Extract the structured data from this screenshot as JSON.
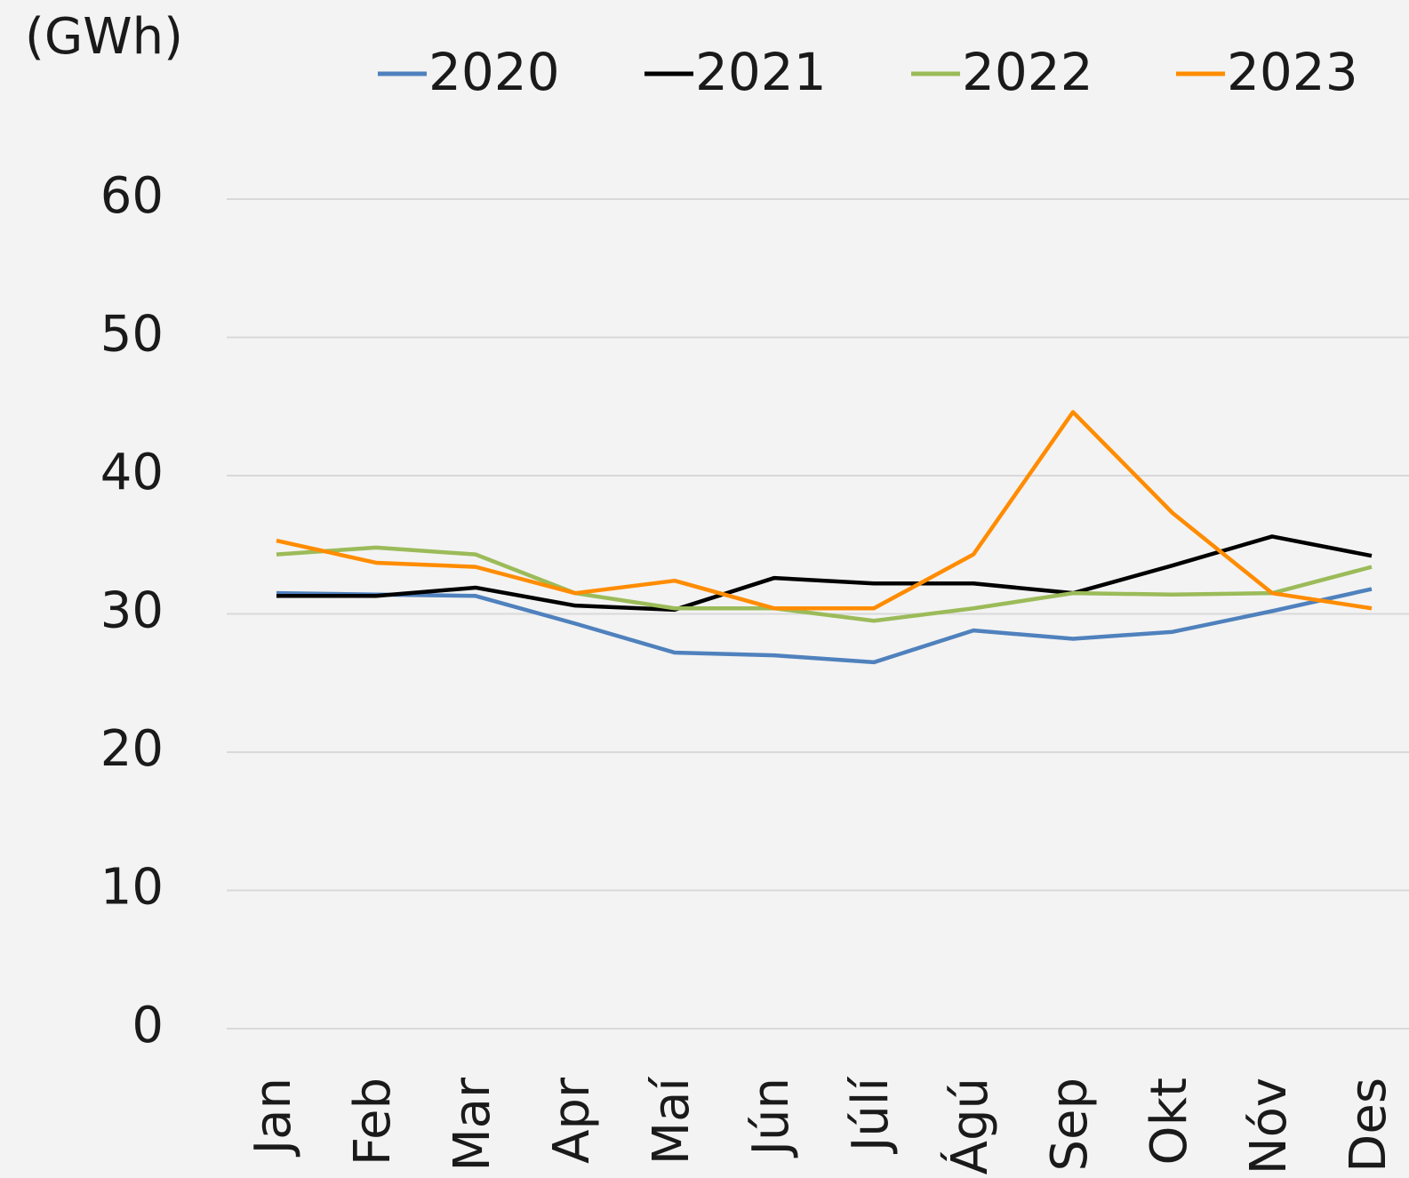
{
  "chart_data": {
    "type": "line",
    "y_label": "(GWh)",
    "categories": [
      "Jan",
      "Feb",
      "Mar",
      "Apr",
      "Maí",
      "Jún",
      "Júlí",
      "Ágú",
      "Sep",
      "Okt",
      "Nóv",
      "Des"
    ],
    "series": [
      {
        "name": "2020",
        "color": "#4f81bd",
        "values": [
          31.5,
          31.4,
          31.3,
          29.3,
          27.2,
          27.0,
          26.5,
          28.8,
          28.2,
          28.7,
          30.2,
          31.8
        ]
      },
      {
        "name": "2021",
        "color": "#000000",
        "values": [
          31.3,
          31.3,
          31.9,
          30.6,
          30.3,
          32.6,
          32.2,
          32.2,
          31.5,
          33.5,
          35.6,
          34.2
        ]
      },
      {
        "name": "2022",
        "color": "#9bbb59",
        "values": [
          34.3,
          34.8,
          34.3,
          31.5,
          30.4,
          30.4,
          29.5,
          30.4,
          31.5,
          31.4,
          31.5,
          33.4
        ]
      },
      {
        "name": "2023",
        "color": "#ff8c00",
        "values": [
          35.3,
          33.7,
          33.4,
          31.5,
          32.4,
          30.4,
          30.4,
          34.3,
          44.6,
          37.3,
          31.5,
          30.4
        ]
      }
    ],
    "ylim": [
      0,
      60
    ],
    "yticks": [
      0,
      10,
      20,
      30,
      40,
      50,
      60
    ],
    "grid": true,
    "legend": "top"
  }
}
